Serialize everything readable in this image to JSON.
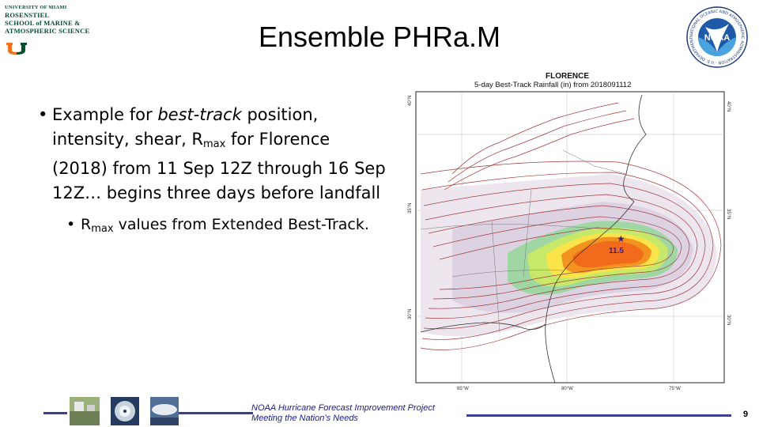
{
  "header": {
    "logo_left_lines": [
      "UNIVERSITY OF MIAMI",
      "ROSENSTIEL",
      "SCHOOL of MARINE &",
      "ATMOSPHERIC SCIENCE"
    ],
    "title": "Ensemble PHRa.M",
    "noaa_logo_text": "NOAA",
    "noaa_ring_text": "NATIONAL OCEANIC AND ATMOSPHERIC ADMINISTRATION · U.S. DEPARTMENT OF COMMERCE"
  },
  "bullets": {
    "main": {
      "part1": "Example for ",
      "italic": "best-track",
      "part2": " position, intensity, shear, R",
      "sub": "max",
      "part3": " for Florence (2018) from 11 Sep 12Z through 16 Sep 12Z… begins three days before landfall"
    },
    "secondary": {
      "part1": "R",
      "sub": "max",
      "part2": " values from Extended Best-Track."
    }
  },
  "map": {
    "title": "FLORENCE",
    "subtitle": "5-day Best-Track Rainfall (in) from 2018091112",
    "max_label": "11.5",
    "lat_labels_left": [
      "40°N",
      "35°N",
      "30°N"
    ],
    "lat_labels_right": [
      "40°N",
      "35°N",
      "30°N"
    ],
    "lon_labels": [
      "85°W",
      "80°W",
      "75°W"
    ]
  },
  "footer": {
    "line1": "NOAA Hurricane Forecast Improvement Project",
    "line2": "Meeting the Nation’s Needs",
    "page_number": "9"
  }
}
